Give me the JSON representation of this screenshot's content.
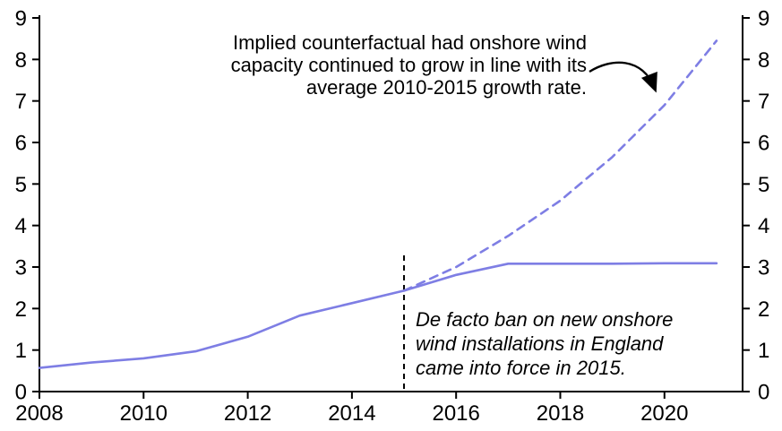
{
  "figure": {
    "background": "#ffffff",
    "axis_color": "#000000",
    "accent_color": "#7e7ee4"
  },
  "chart_data": {
    "type": "line",
    "title": "",
    "xlabel": "",
    "ylabel": "",
    "xlim": [
      2008,
      2021.5
    ],
    "ylim": [
      0,
      9
    ],
    "xticks": [
      2008,
      2010,
      2012,
      2014,
      2016,
      2018,
      2020
    ],
    "yticks": [
      0,
      1,
      2,
      3,
      4,
      5,
      6,
      7,
      8,
      9
    ],
    "grid": false,
    "legend_position": "none",
    "dual_y_axis_labels": true,
    "series": [
      {
        "name": "actual-onshore-wind-capacity",
        "style": "solid",
        "color": "#7e7ee4",
        "x": [
          2008,
          2009,
          2010,
          2011,
          2012,
          2013,
          2014,
          2015,
          2016,
          2017,
          2018,
          2019,
          2020,
          2021
        ],
        "values": [
          0.57,
          0.7,
          0.8,
          0.97,
          1.32,
          1.83,
          2.13,
          2.43,
          2.81,
          3.08,
          3.08,
          3.08,
          3.09,
          3.09
        ]
      },
      {
        "name": "implied-counterfactual",
        "style": "dashed",
        "color": "#7e7ee4",
        "x": [
          2015,
          2016,
          2017,
          2018,
          2019,
          2020,
          2021
        ],
        "values": [
          2.43,
          3.0,
          3.75,
          4.6,
          5.65,
          6.9,
          8.45
        ]
      }
    ],
    "event_line": {
      "x": 2015,
      "y_from": 0,
      "y_to": 3.28,
      "style": "dashed",
      "color": "#000000"
    }
  },
  "annotations": {
    "counterfactual": {
      "lines": [
        "Implied counterfactual had onshore wind",
        "capacity continued to grow in line with its",
        "average 2010-2015 growth rate."
      ]
    },
    "ban": {
      "lines": [
        "De facto ban on new onshore",
        "wind installations in England",
        "came into force in 2015."
      ]
    }
  }
}
